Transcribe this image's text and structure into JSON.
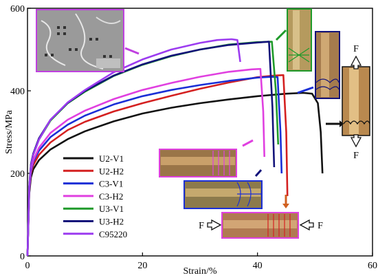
{
  "chart_data": {
    "type": "line",
    "title": "",
    "xlabel": "Strain/%",
    "ylabel": "Stress/MPa",
    "xlim": [
      0,
      60
    ],
    "ylim": [
      0,
      600
    ],
    "xticks": [
      0,
      20,
      40,
      60
    ],
    "yticks": [
      0,
      200,
      400,
      600
    ],
    "grid": false,
    "legend_position": "lower-left",
    "series": [
      {
        "name": "U2-V1",
        "color": "#111111",
        "x": [
          0,
          0.3,
          0.6,
          1.0,
          2.0,
          4.0,
          7.0,
          10.0,
          15.0,
          20.0,
          25.0,
          30.0,
          35.0,
          40.0,
          45.0,
          48.0,
          49.5,
          50.5,
          51.0,
          51.3
        ],
        "y": [
          0,
          150,
          190,
          210,
          232,
          258,
          283,
          302,
          326,
          345,
          359,
          370,
          379,
          387,
          393,
          395,
          393,
          370,
          300,
          200
        ]
      },
      {
        "name": "U2-H2",
        "color": "#d42020",
        "x": [
          0,
          0.3,
          0.6,
          1.0,
          2.0,
          4.0,
          7.0,
          10.0,
          15.0,
          20.0,
          25.0,
          30.0,
          35.0,
          40.0,
          43.0,
          44.5,
          45.0,
          45.2
        ],
        "y": [
          0,
          155,
          200,
          220,
          245,
          275,
          305,
          325,
          350,
          370,
          388,
          405,
          420,
          433,
          437,
          438,
          300,
          145
        ]
      },
      {
        "name": "C3-V1",
        "color": "#1a2fd6",
        "x": [
          0,
          0.3,
          0.6,
          1.0,
          2.0,
          4.0,
          7.0,
          10.0,
          15.0,
          20.0,
          25.0,
          30.0,
          35.0,
          40.0,
          42.5,
          43.5,
          44.0,
          44.2
        ],
        "y": [
          0,
          158,
          205,
          228,
          255,
          288,
          318,
          340,
          367,
          387,
          402,
          414,
          424,
          432,
          434,
          433,
          300,
          200
        ]
      },
      {
        "name": "C3-H2",
        "color": "#e040e0",
        "x": [
          0,
          0.3,
          0.6,
          1.0,
          2.0,
          4.0,
          7.0,
          10.0,
          15.0,
          20.0,
          25.0,
          30.0,
          35.0,
          39.0,
          40.5,
          41.0,
          41.2
        ],
        "y": [
          0,
          160,
          210,
          232,
          262,
          298,
          330,
          352,
          380,
          402,
          419,
          434,
          446,
          452,
          453,
          350,
          240
        ]
      },
      {
        "name": "U3-V1",
        "color": "#1f9a2a",
        "x": [
          0,
          0.3,
          0.6,
          1.0,
          2.0,
          4.0,
          7.0,
          10.0,
          15.0,
          20.0,
          25.0,
          30.0,
          35.0,
          40.0,
          42.5,
          43.2,
          43.6
        ],
        "y": [
          0,
          165,
          220,
          245,
          282,
          328,
          370,
          398,
          436,
          463,
          484,
          500,
          512,
          518,
          519,
          400,
          270
        ]
      },
      {
        "name": "U3-H2",
        "color": "#12127a",
        "x": [
          0,
          0.3,
          0.6,
          1.0,
          2.0,
          4.0,
          7.0,
          10.0,
          15.0,
          20.0,
          25.0,
          30.0,
          35.0,
          40.0,
          42.0,
          42.6,
          42.9
        ],
        "y": [
          0,
          168,
          222,
          248,
          285,
          330,
          371,
          400,
          437,
          464,
          485,
          500,
          511,
          517,
          519,
          360,
          215
        ]
      },
      {
        "name": "C95220",
        "color": "#9c3cf0",
        "x": [
          0,
          0.3,
          0.6,
          1.0,
          2.0,
          4.0,
          7.0,
          10.0,
          15.0,
          20.0,
          25.0,
          30.0,
          33.0,
          35.5,
          36.5,
          37.0
        ],
        "y": [
          0,
          165,
          218,
          245,
          282,
          330,
          372,
          402,
          445,
          476,
          500,
          516,
          523,
          525,
          523,
          470
        ]
      }
    ],
    "annotations": {
      "force_label": "F"
    }
  }
}
